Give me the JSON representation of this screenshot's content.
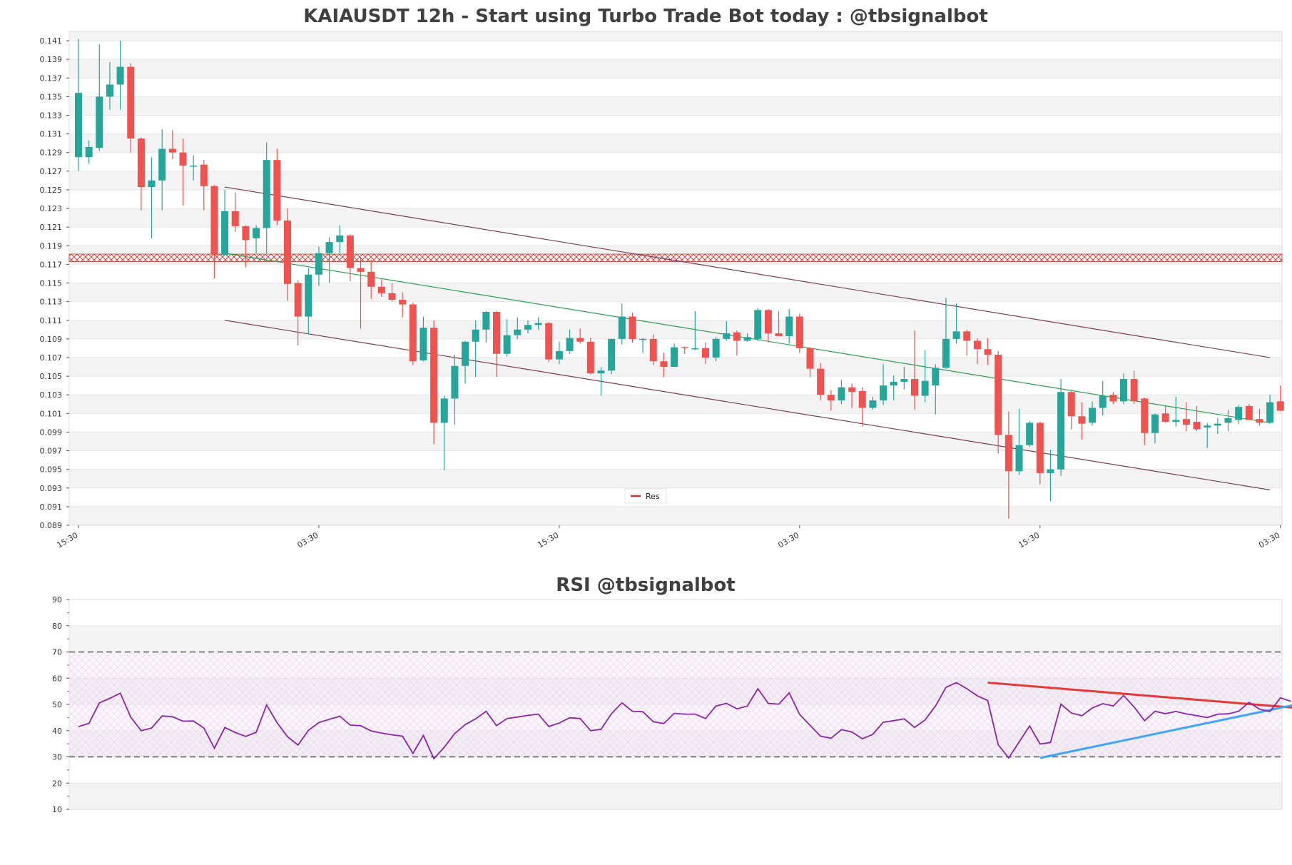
{
  "chart_data": [
    {
      "type": "candlestick",
      "title": "KAIAUSDT 12h - Start using Turbo Trade Bot today : @tbsignalbot",
      "ylim": [
        0.089,
        0.142
      ],
      "y_ticks": [
        0.089,
        0.091,
        0.093,
        0.095,
        0.097,
        0.099,
        0.101,
        0.103,
        0.105,
        0.107,
        0.109,
        0.111,
        0.113,
        0.115,
        0.117,
        0.119,
        0.121,
        0.123,
        0.125,
        0.127,
        0.129,
        0.131,
        0.133,
        0.135,
        0.137,
        0.139,
        0.141
      ],
      "x_tick_labels": [
        "15:30",
        "03:30",
        "15:30",
        "03:30",
        "15:30",
        "03:30"
      ],
      "x_tick_index": [
        0,
        23,
        46,
        69,
        92,
        115
      ],
      "colors": {
        "up": "#26a69a",
        "down": "#ef5350",
        "resistance": "#c0392b",
        "channel": "#7b3f50",
        "trend": "#2e9e4f"
      },
      "legend": [
        "Res"
      ],
      "resistance_level": 0.1177,
      "channel_upper": [
        [
          14,
          0.1253
        ],
        [
          114,
          0.107
        ]
      ],
      "channel_lower": [
        [
          14,
          0.111
        ],
        [
          114,
          0.0928
        ]
      ],
      "trend_line": [
        [
          14,
          0.1182
        ],
        [
          114,
          0.1
        ]
      ],
      "candles": [
        {
          "o": 0.1285,
          "h": 0.1412,
          "l": 0.127,
          "c": 0.1354
        },
        {
          "o": 0.1285,
          "h": 0.1303,
          "l": 0.1278,
          "c": 0.1296
        },
        {
          "o": 0.1295,
          "h": 0.1406,
          "l": 0.1292,
          "c": 0.135
        },
        {
          "o": 0.135,
          "h": 0.1387,
          "l": 0.1336,
          "c": 0.1363
        },
        {
          "o": 0.1363,
          "h": 0.141,
          "l": 0.1336,
          "c": 0.1382
        },
        {
          "o": 0.1382,
          "h": 0.1386,
          "l": 0.129,
          "c": 0.1305
        },
        {
          "o": 0.1305,
          "h": 0.1306,
          "l": 0.1228,
          "c": 0.1253
        },
        {
          "o": 0.1253,
          "h": 0.1285,
          "l": 0.1198,
          "c": 0.126
        },
        {
          "o": 0.126,
          "h": 0.1315,
          "l": 0.1228,
          "c": 0.1294
        },
        {
          "o": 0.1294,
          "h": 0.1314,
          "l": 0.1283,
          "c": 0.129
        },
        {
          "o": 0.129,
          "h": 0.1305,
          "l": 0.1233,
          "c": 0.1276
        },
        {
          "o": 0.1276,
          "h": 0.1287,
          "l": 0.126,
          "c": 0.1276
        },
        {
          "o": 0.1277,
          "h": 0.1282,
          "l": 0.1228,
          "c": 0.1254
        },
        {
          "o": 0.1254,
          "h": 0.1255,
          "l": 0.1155,
          "c": 0.118
        },
        {
          "o": 0.118,
          "h": 0.125,
          "l": 0.118,
          "c": 0.1227
        },
        {
          "o": 0.1227,
          "h": 0.1247,
          "l": 0.1205,
          "c": 0.1211
        },
        {
          "o": 0.1211,
          "h": 0.1212,
          "l": 0.1167,
          "c": 0.1196
        },
        {
          "o": 0.1198,
          "h": 0.1212,
          "l": 0.1182,
          "c": 0.1209
        },
        {
          "o": 0.1209,
          "h": 0.1301,
          "l": 0.1182,
          "c": 0.1282
        },
        {
          "o": 0.1282,
          "h": 0.1294,
          "l": 0.1212,
          "c": 0.1217
        },
        {
          "o": 0.1217,
          "h": 0.123,
          "l": 0.1131,
          "c": 0.1149
        },
        {
          "o": 0.115,
          "h": 0.1153,
          "l": 0.1083,
          "c": 0.1114
        },
        {
          "o": 0.1114,
          "h": 0.1166,
          "l": 0.1095,
          "c": 0.1159
        },
        {
          "o": 0.1159,
          "h": 0.1189,
          "l": 0.1147,
          "c": 0.1182
        },
        {
          "o": 0.1182,
          "h": 0.1199,
          "l": 0.115,
          "c": 0.1194
        },
        {
          "o": 0.1194,
          "h": 0.1212,
          "l": 0.1182,
          "c": 0.1201
        },
        {
          "o": 0.1201,
          "h": 0.1202,
          "l": 0.1152,
          "c": 0.1166
        },
        {
          "o": 0.1166,
          "h": 0.1178,
          "l": 0.1101,
          "c": 0.1162
        },
        {
          "o": 0.1162,
          "h": 0.1175,
          "l": 0.1133,
          "c": 0.1146
        },
        {
          "o": 0.1146,
          "h": 0.1155,
          "l": 0.1135,
          "c": 0.1139
        },
        {
          "o": 0.1139,
          "h": 0.115,
          "l": 0.113,
          "c": 0.1132
        },
        {
          "o": 0.1132,
          "h": 0.114,
          "l": 0.1113,
          "c": 0.1127
        },
        {
          "o": 0.1127,
          "h": 0.1129,
          "l": 0.1062,
          "c": 0.1066
        },
        {
          "o": 0.1067,
          "h": 0.1114,
          "l": 0.1066,
          "c": 0.1102
        },
        {
          "o": 0.1102,
          "h": 0.111,
          "l": 0.0977,
          "c": 0.1
        },
        {
          "o": 0.1,
          "h": 0.1029,
          "l": 0.0949,
          "c": 0.1026
        },
        {
          "o": 0.1026,
          "h": 0.1073,
          "l": 0.0998,
          "c": 0.1061
        },
        {
          "o": 0.1061,
          "h": 0.1088,
          "l": 0.1042,
          "c": 0.1087
        },
        {
          "o": 0.1087,
          "h": 0.111,
          "l": 0.1049,
          "c": 0.11
        },
        {
          "o": 0.11,
          "h": 0.112,
          "l": 0.1086,
          "c": 0.1119
        },
        {
          "o": 0.1119,
          "h": 0.112,
          "l": 0.1049,
          "c": 0.1074
        },
        {
          "o": 0.1074,
          "h": 0.1111,
          "l": 0.1071,
          "c": 0.1094
        },
        {
          "o": 0.1094,
          "h": 0.1113,
          "l": 0.109,
          "c": 0.11
        },
        {
          "o": 0.11,
          "h": 0.111,
          "l": 0.1096,
          "c": 0.1105
        },
        {
          "o": 0.1105,
          "h": 0.1113,
          "l": 0.11,
          "c": 0.1107
        },
        {
          "o": 0.1107,
          "h": 0.1108,
          "l": 0.1065,
          "c": 0.1068
        },
        {
          "o": 0.1068,
          "h": 0.1087,
          "l": 0.1063,
          "c": 0.1077
        },
        {
          "o": 0.1077,
          "h": 0.11,
          "l": 0.1074,
          "c": 0.1091
        },
        {
          "o": 0.1091,
          "h": 0.1101,
          "l": 0.1085,
          "c": 0.1087
        },
        {
          "o": 0.1087,
          "h": 0.1091,
          "l": 0.1052,
          "c": 0.1053
        },
        {
          "o": 0.1053,
          "h": 0.106,
          "l": 0.1029,
          "c": 0.1056
        },
        {
          "o": 0.1056,
          "h": 0.109,
          "l": 0.1052,
          "c": 0.109
        },
        {
          "o": 0.109,
          "h": 0.1128,
          "l": 0.1084,
          "c": 0.1114
        },
        {
          "o": 0.1114,
          "h": 0.1118,
          "l": 0.1086,
          "c": 0.109
        },
        {
          "o": 0.109,
          "h": 0.1091,
          "l": 0.1075,
          "c": 0.109
        },
        {
          "o": 0.109,
          "h": 0.1095,
          "l": 0.1062,
          "c": 0.1066
        },
        {
          "o": 0.1066,
          "h": 0.1075,
          "l": 0.1049,
          "c": 0.106
        },
        {
          "o": 0.106,
          "h": 0.1085,
          "l": 0.106,
          "c": 0.1081
        },
        {
          "o": 0.1081,
          "h": 0.1082,
          "l": 0.1074,
          "c": 0.108
        },
        {
          "o": 0.108,
          "h": 0.112,
          "l": 0.1078,
          "c": 0.108
        },
        {
          "o": 0.108,
          "h": 0.1086,
          "l": 0.1063,
          "c": 0.107
        },
        {
          "o": 0.107,
          "h": 0.1092,
          "l": 0.1066,
          "c": 0.109
        },
        {
          "o": 0.109,
          "h": 0.1109,
          "l": 0.1088,
          "c": 0.1096
        },
        {
          "o": 0.1097,
          "h": 0.1099,
          "l": 0.1072,
          "c": 0.1088
        },
        {
          "o": 0.1088,
          "h": 0.1096,
          "l": 0.1087,
          "c": 0.1092
        },
        {
          "o": 0.109,
          "h": 0.1123,
          "l": 0.1088,
          "c": 0.1121
        },
        {
          "o": 0.1121,
          "h": 0.1122,
          "l": 0.1086,
          "c": 0.1096
        },
        {
          "o": 0.1096,
          "h": 0.112,
          "l": 0.1094,
          "c": 0.1093
        },
        {
          "o": 0.1093,
          "h": 0.1122,
          "l": 0.1085,
          "c": 0.1114
        },
        {
          "o": 0.1114,
          "h": 0.1117,
          "l": 0.1075,
          "c": 0.108
        },
        {
          "o": 0.108,
          "h": 0.1081,
          "l": 0.1049,
          "c": 0.1058
        },
        {
          "o": 0.1058,
          "h": 0.1064,
          "l": 0.1024,
          "c": 0.103
        },
        {
          "o": 0.103,
          "h": 0.1035,
          "l": 0.1013,
          "c": 0.1024
        },
        {
          "o": 0.1024,
          "h": 0.1046,
          "l": 0.102,
          "c": 0.1038
        },
        {
          "o": 0.1038,
          "h": 0.1042,
          "l": 0.1016,
          "c": 0.1033
        },
        {
          "o": 0.1034,
          "h": 0.1038,
          "l": 0.0996,
          "c": 0.1016
        },
        {
          "o": 0.1016,
          "h": 0.1028,
          "l": 0.1014,
          "c": 0.1024
        },
        {
          "o": 0.1024,
          "h": 0.1063,
          "l": 0.1019,
          "c": 0.104
        },
        {
          "o": 0.104,
          "h": 0.1051,
          "l": 0.1024,
          "c": 0.1044
        },
        {
          "o": 0.1044,
          "h": 0.106,
          "l": 0.1036,
          "c": 0.1047
        },
        {
          "o": 0.1047,
          "h": 0.1099,
          "l": 0.1014,
          "c": 0.1029
        },
        {
          "o": 0.1029,
          "h": 0.1078,
          "l": 0.1022,
          "c": 0.1045
        },
        {
          "o": 0.104,
          "h": 0.1063,
          "l": 0.1009,
          "c": 0.1059
        },
        {
          "o": 0.1059,
          "h": 0.1134,
          "l": 0.1058,
          "c": 0.109
        },
        {
          "o": 0.109,
          "h": 0.1128,
          "l": 0.1085,
          "c": 0.1098
        },
        {
          "o": 0.1098,
          "h": 0.11,
          "l": 0.1072,
          "c": 0.1088
        },
        {
          "o": 0.1088,
          "h": 0.1091,
          "l": 0.1063,
          "c": 0.1079
        },
        {
          "o": 0.1079,
          "h": 0.1091,
          "l": 0.1062,
          "c": 0.1073
        },
        {
          "o": 0.1073,
          "h": 0.1077,
          "l": 0.0967,
          "c": 0.0987
        },
        {
          "o": 0.0987,
          "h": 0.1012,
          "l": 0.0897,
          "c": 0.0948
        },
        {
          "o": 0.0948,
          "h": 0.1015,
          "l": 0.0944,
          "c": 0.0976
        },
        {
          "o": 0.0976,
          "h": 0.1002,
          "l": 0.0974,
          "c": 0.1
        },
        {
          "o": 0.1,
          "h": 0.1001,
          "l": 0.0934,
          "c": 0.0946
        },
        {
          "o": 0.0946,
          "h": 0.0971,
          "l": 0.0916,
          "c": 0.095
        },
        {
          "o": 0.095,
          "h": 0.1047,
          "l": 0.0943,
          "c": 0.1033
        },
        {
          "o": 0.1033,
          "h": 0.1034,
          "l": 0.0993,
          "c": 0.1007
        },
        {
          "o": 0.1007,
          "h": 0.1022,
          "l": 0.0982,
          "c": 0.0999
        },
        {
          "o": 0.1,
          "h": 0.1023,
          "l": 0.0997,
          "c": 0.1016
        },
        {
          "o": 0.1016,
          "h": 0.1045,
          "l": 0.1008,
          "c": 0.1029
        },
        {
          "o": 0.103,
          "h": 0.1033,
          "l": 0.102,
          "c": 0.1023
        },
        {
          "o": 0.1023,
          "h": 0.1053,
          "l": 0.102,
          "c": 0.1047
        },
        {
          "o": 0.1047,
          "h": 0.1056,
          "l": 0.102,
          "c": 0.1023
        },
        {
          "o": 0.1026,
          "h": 0.1027,
          "l": 0.0976,
          "c": 0.0989
        },
        {
          "o": 0.0989,
          "h": 0.101,
          "l": 0.0978,
          "c": 0.1009
        },
        {
          "o": 0.101,
          "h": 0.1018,
          "l": 0.1,
          "c": 0.1001
        },
        {
          "o": 0.1001,
          "h": 0.1028,
          "l": 0.0996,
          "c": 0.1003
        },
        {
          "o": 0.1004,
          "h": 0.1022,
          "l": 0.0991,
          "c": 0.0998
        },
        {
          "o": 0.1001,
          "h": 0.1018,
          "l": 0.0991,
          "c": 0.0993
        },
        {
          "o": 0.0995,
          "h": 0.1,
          "l": 0.0973,
          "c": 0.0997
        },
        {
          "o": 0.0997,
          "h": 0.1005,
          "l": 0.0988,
          "c": 0.0999
        },
        {
          "o": 0.1,
          "h": 0.1014,
          "l": 0.0991,
          "c": 0.1005
        },
        {
          "o": 0.1003,
          "h": 0.1019,
          "l": 0.0999,
          "c": 0.1017
        },
        {
          "o": 0.1018,
          "h": 0.102,
          "l": 0.1003,
          "c": 0.1003
        },
        {
          "o": 0.1004,
          "h": 0.1015,
          "l": 0.0997,
          "c": 0.1
        },
        {
          "o": 0.1,
          "h": 0.103,
          "l": 0.0999,
          "c": 0.1022
        },
        {
          "o": 0.1023,
          "h": 0.104,
          "l": 0.1012,
          "c": 0.1013
        }
      ]
    },
    {
      "type": "line",
      "title": "RSI @tbsignalbot",
      "ylim": [
        10,
        90
      ],
      "y_ticks": [
        10,
        20,
        30,
        40,
        50,
        60,
        70,
        80,
        90
      ],
      "overbought": 70,
      "oversold": 30,
      "colors": {
        "rsi": "#8e24aa",
        "down_trend": "#e53935",
        "up_trend": "#42a5f5"
      },
      "down_trend_line": [
        [
          87,
          58.3
        ],
        [
          118,
          48.2
        ]
      ],
      "up_trend_line": [
        [
          92,
          29.6
        ],
        [
          118,
          51.2
        ]
      ],
      "values": [
        41.5,
        42.8,
        50.6,
        52.3,
        54.3,
        45.1,
        40.0,
        41.0,
        45.6,
        45.3,
        43.6,
        43.7,
        41.0,
        33.3,
        41.2,
        39.3,
        37.8,
        39.4,
        49.8,
        43.0,
        37.7,
        34.5,
        40.1,
        43.1,
        44.3,
        45.5,
        42.1,
        41.9,
        39.9,
        39.1,
        38.4,
        37.9,
        31.3,
        38.2,
        29.3,
        33.7,
        38.9,
        42.3,
        44.5,
        47.4,
        41.9,
        44.6,
        45.2,
        45.8,
        46.3,
        41.6,
        42.9,
        44.9,
        44.6,
        40.0,
        40.5,
        46.5,
        50.6,
        47.4,
        47.2,
        43.4,
        42.7,
        46.6,
        46.3,
        46.3,
        44.6,
        49.4,
        50.4,
        48.3,
        49.4,
        56.0,
        50.4,
        50.1,
        54.4,
        46.2,
        42.0,
        37.9,
        37.1,
        40.4,
        39.5,
        36.9,
        38.6,
        43.2,
        43.8,
        44.5,
        41.2,
        44.1,
        49.4,
        56.5,
        58.3,
        56.0,
        53.3,
        51.5,
        34.6,
        29.6,
        35.7,
        41.8,
        34.9,
        35.5,
        50.1,
        46.7,
        45.7,
        48.6,
        50.3,
        49.4,
        53.4,
        49.0,
        43.8,
        47.4,
        46.5,
        47.3,
        46.4,
        45.7,
        45.0,
        46.3,
        46.4,
        47.4,
        50.8,
        48.2,
        47.3,
        52.5,
        51.2
      ]
    }
  ]
}
